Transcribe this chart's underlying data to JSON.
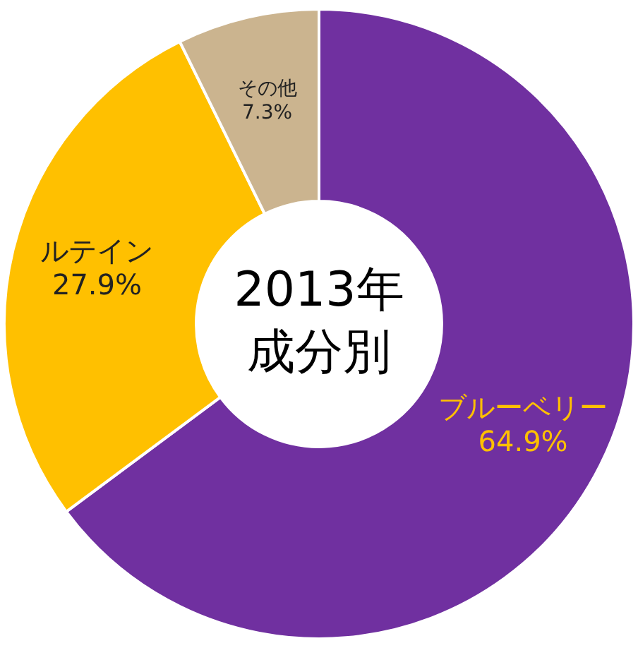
{
  "chart_data": {
    "type": "donut",
    "annotations": [
      "2013年",
      "成分別"
    ],
    "categories": [
      "ブルーベリー",
      "ルテイン",
      "その他"
    ],
    "values": [
      64.9,
      27.9,
      7.3
    ],
    "colors": [
      "#7030a0",
      "#ffc000",
      "#cbb48f"
    ],
    "value_labels": [
      "64.9%",
      "27.9%",
      "7.3%"
    ],
    "legend": false
  }
}
